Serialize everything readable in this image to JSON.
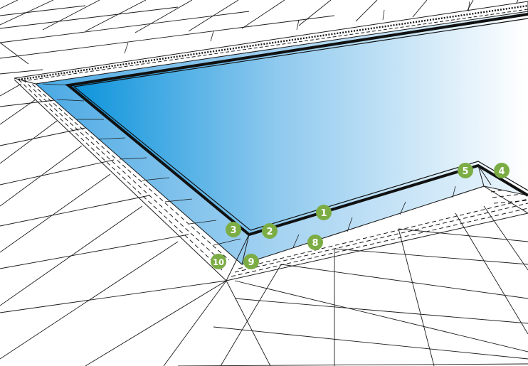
{
  "colors": {
    "background": "#ffffff",
    "tile_line": "#1a1a1a",
    "pool_deep": "#0b93db",
    "pool_light": "#ffffff",
    "coping_blue": "#3aa2e2",
    "pool_outline": "#111111",
    "marker_fill": "#7cad45",
    "marker_text": "#ffffff"
  },
  "markers": [
    {
      "label": "1"
    },
    {
      "label": "2"
    },
    {
      "label": "3"
    },
    {
      "label": "4"
    },
    {
      "label": "5"
    },
    {
      "label": "8"
    },
    {
      "label": "9"
    },
    {
      "label": "10"
    }
  ]
}
